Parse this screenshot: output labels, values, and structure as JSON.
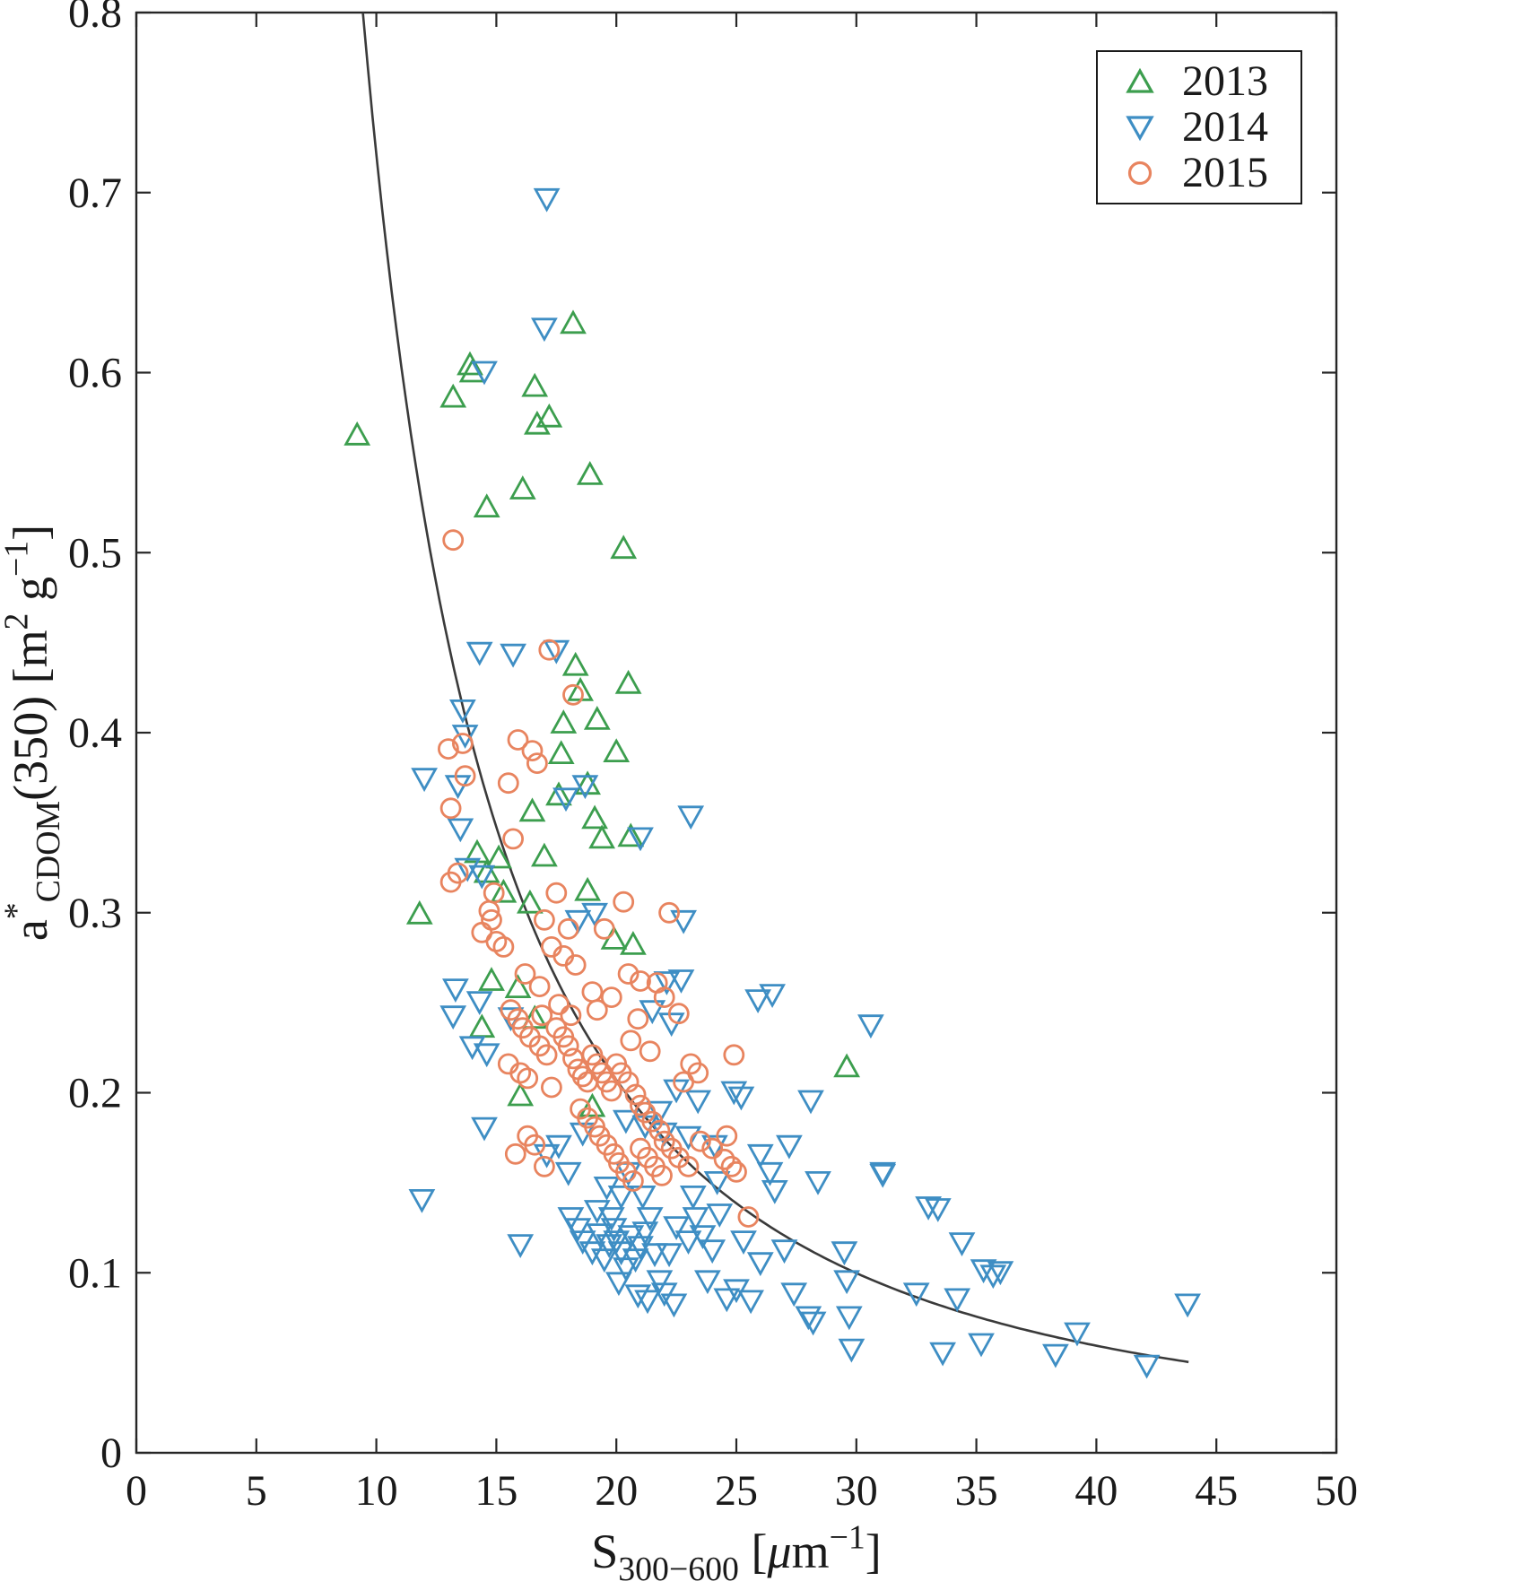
{
  "figure": {
    "background": "#ffffff",
    "axis_color": "#262626",
    "text_color": "#1a1a1a"
  },
  "chart_data": {
    "type": "scatter",
    "title": "",
    "xlabel_text": "S300−600 [μm−1]",
    "ylabel_text": "a*CDOM(350) [m2 g−1]",
    "xlabel_parts": [
      {
        "text": "S",
        "pos": "base"
      },
      {
        "text": "300−600",
        "pos": "sub"
      },
      {
        "text": " [",
        "pos": "base"
      },
      {
        "text": "μ",
        "pos": "base",
        "italic": true
      },
      {
        "text": "m",
        "pos": "base"
      },
      {
        "text": "−1",
        "pos": "sup"
      },
      {
        "text": "]",
        "pos": "base"
      }
    ],
    "ylabel_parts": [
      {
        "text": "a",
        "pos": "base"
      },
      {
        "text": "*",
        "pos": "sup"
      },
      {
        "text": "CDOM",
        "pos": "sub"
      },
      {
        "text": "(350) [m",
        "pos": "base"
      },
      {
        "text": "2",
        "pos": "sup"
      },
      {
        "text": " g",
        "pos": "base"
      },
      {
        "text": "−1",
        "pos": "sup"
      },
      {
        "text": "]",
        "pos": "base"
      }
    ],
    "xlim": [
      0,
      50
    ],
    "ylim": [
      0,
      0.8
    ],
    "xticks": [
      0,
      5,
      10,
      15,
      20,
      25,
      30,
      35,
      40,
      45,
      50
    ],
    "yticks": [
      0,
      0.1,
      0.2,
      0.3,
      0.4,
      0.5,
      0.6,
      0.7,
      0.8
    ],
    "xtick_labels": [
      "0",
      "5",
      "10",
      "15",
      "20",
      "25",
      "30",
      "35",
      "40",
      "45",
      "50"
    ],
    "ytick_labels": [
      "0",
      "0.1",
      "0.2",
      "0.3",
      "0.4",
      "0.5",
      "0.6",
      "0.7",
      "0.8"
    ],
    "grid": false,
    "legend_position": "top-right",
    "fit_curve": {
      "type": "power",
      "equation": "y = 45.5 * x^-1.8",
      "a": 45.5,
      "b": -1.8,
      "x_range": [
        9.44,
        44.0
      ],
      "color": "#3a3a3a"
    },
    "series": [
      {
        "name": "2013",
        "marker": "triangle-up",
        "color": "#3c9e4e",
        "points": [
          [
            9.2,
            0.565
          ],
          [
            11.8,
            0.299
          ],
          [
            13.2,
            0.586
          ],
          [
            13.9,
            0.604
          ],
          [
            14.0,
            0.6
          ],
          [
            14.6,
            0.525
          ],
          [
            16.1,
            0.535
          ],
          [
            16.6,
            0.592
          ],
          [
            16.7,
            0.571
          ],
          [
            17.2,
            0.575
          ],
          [
            18.2,
            0.627
          ],
          [
            18.9,
            0.543
          ],
          [
            20.3,
            0.502
          ],
          [
            18.3,
            0.437
          ],
          [
            18.5,
            0.423
          ],
          [
            20.5,
            0.427
          ],
          [
            17.8,
            0.405
          ],
          [
            19.2,
            0.407
          ],
          [
            17.7,
            0.388
          ],
          [
            20.0,
            0.389
          ],
          [
            17.6,
            0.365
          ],
          [
            18.8,
            0.371
          ],
          [
            19.1,
            0.352
          ],
          [
            19.4,
            0.341
          ],
          [
            20.6,
            0.342
          ],
          [
            16.5,
            0.356
          ],
          [
            17.0,
            0.331
          ],
          [
            14.2,
            0.333
          ],
          [
            14.6,
            0.322
          ],
          [
            15.3,
            0.311
          ],
          [
            16.4,
            0.305
          ],
          [
            18.8,
            0.312
          ],
          [
            14.8,
            0.262
          ],
          [
            15.9,
            0.258
          ],
          [
            16.6,
            0.241
          ],
          [
            14.4,
            0.236
          ],
          [
            16.0,
            0.198
          ],
          [
            19.0,
            0.192
          ],
          [
            29.6,
            0.214
          ],
          [
            20.7,
            0.282
          ],
          [
            19.9,
            0.285
          ],
          [
            15.1,
            0.33
          ]
        ]
      },
      {
        "name": "2014",
        "marker": "triangle-down",
        "color": "#3e8ec4",
        "points": [
          [
            17.1,
            0.697
          ],
          [
            17.0,
            0.625
          ],
          [
            14.5,
            0.601
          ],
          [
            14.3,
            0.445
          ],
          [
            15.7,
            0.444
          ],
          [
            17.5,
            0.446
          ],
          [
            13.6,
            0.413
          ],
          [
            13.7,
            0.399
          ],
          [
            12.0,
            0.375
          ],
          [
            13.4,
            0.371
          ],
          [
            17.9,
            0.364
          ],
          [
            18.7,
            0.371
          ],
          [
            23.1,
            0.354
          ],
          [
            21.0,
            0.342
          ],
          [
            13.5,
            0.347
          ],
          [
            13.8,
            0.325
          ],
          [
            14.4,
            0.321
          ],
          [
            22.8,
            0.296
          ],
          [
            19.1,
            0.3
          ],
          [
            18.4,
            0.296
          ],
          [
            26.5,
            0.255
          ],
          [
            25.9,
            0.252
          ],
          [
            30.6,
            0.238
          ],
          [
            13.3,
            0.258
          ],
          [
            14.3,
            0.251
          ],
          [
            13.2,
            0.243
          ],
          [
            15.6,
            0.242
          ],
          [
            14.0,
            0.226
          ],
          [
            14.6,
            0.222
          ],
          [
            22.1,
            0.262
          ],
          [
            22.7,
            0.263
          ],
          [
            21.5,
            0.246
          ],
          [
            22.3,
            0.239
          ],
          [
            24.9,
            0.201
          ],
          [
            25.2,
            0.198
          ],
          [
            28.1,
            0.196
          ],
          [
            22.5,
            0.202
          ],
          [
            23.4,
            0.196
          ],
          [
            21.8,
            0.19
          ],
          [
            23.0,
            0.176
          ],
          [
            24.1,
            0.171
          ],
          [
            26.0,
            0.166
          ],
          [
            26.4,
            0.156
          ],
          [
            27.2,
            0.171
          ],
          [
            28.4,
            0.151
          ],
          [
            31.1,
            0.156
          ],
          [
            14.5,
            0.181
          ],
          [
            17.6,
            0.171
          ],
          [
            17.1,
            0.166
          ],
          [
            18.0,
            0.156
          ],
          [
            20.4,
            0.185
          ],
          [
            21.2,
            0.182
          ],
          [
            22.0,
            0.178
          ],
          [
            11.9,
            0.141
          ],
          [
            16.0,
            0.116
          ],
          [
            18.1,
            0.131
          ],
          [
            18.4,
            0.125
          ],
          [
            18.6,
            0.118
          ],
          [
            19.0,
            0.112
          ],
          [
            19.3,
            0.122
          ],
          [
            19.5,
            0.108
          ],
          [
            19.7,
            0.116
          ],
          [
            19.9,
            0.125
          ],
          [
            20.0,
            0.118
          ],
          [
            20.2,
            0.112
          ],
          [
            20.4,
            0.103
          ],
          [
            20.6,
            0.121
          ],
          [
            20.8,
            0.108
          ],
          [
            21.0,
            0.115
          ],
          [
            21.2,
            0.123
          ],
          [
            21.4,
            0.131
          ],
          [
            21.6,
            0.111
          ],
          [
            21.8,
            0.096
          ],
          [
            22.0,
            0.089
          ],
          [
            22.2,
            0.111
          ],
          [
            22.5,
            0.126
          ],
          [
            23.0,
            0.118
          ],
          [
            23.3,
            0.131
          ],
          [
            23.6,
            0.121
          ],
          [
            24.0,
            0.113
          ],
          [
            24.3,
            0.133
          ],
          [
            24.6,
            0.086
          ],
          [
            25.0,
            0.091
          ],
          [
            25.3,
            0.118
          ],
          [
            26.0,
            0.106
          ],
          [
            26.6,
            0.146
          ],
          [
            27.0,
            0.113
          ],
          [
            27.4,
            0.089
          ],
          [
            28.0,
            0.076
          ],
          [
            28.2,
            0.073
          ],
          [
            29.5,
            0.112
          ],
          [
            29.6,
            0.096
          ],
          [
            29.7,
            0.076
          ],
          [
            29.8,
            0.058
          ],
          [
            31.1,
            0.155
          ],
          [
            32.5,
            0.089
          ],
          [
            33.0,
            0.137
          ],
          [
            33.4,
            0.136
          ],
          [
            33.6,
            0.056
          ],
          [
            34.2,
            0.086
          ],
          [
            34.4,
            0.117
          ],
          [
            35.2,
            0.061
          ],
          [
            35.3,
            0.102
          ],
          [
            35.7,
            0.099
          ],
          [
            36.0,
            0.101
          ],
          [
            38.3,
            0.055
          ],
          [
            39.2,
            0.067
          ],
          [
            42.1,
            0.049
          ],
          [
            43.8,
            0.083
          ],
          [
            20.5,
            0.156
          ],
          [
            19.6,
            0.148
          ],
          [
            20.2,
            0.143
          ],
          [
            21.1,
            0.143
          ],
          [
            18.6,
            0.178
          ],
          [
            24.2,
            0.151
          ],
          [
            23.2,
            0.143
          ],
          [
            19.2,
            0.135
          ],
          [
            19.8,
            0.131
          ],
          [
            20.9,
            0.088
          ],
          [
            21.3,
            0.085
          ],
          [
            22.4,
            0.083
          ],
          [
            20.1,
            0.095
          ],
          [
            23.8,
            0.096
          ],
          [
            25.6,
            0.085
          ]
        ]
      },
      {
        "name": "2015",
        "marker": "circle",
        "color": "#e8845f",
        "points": [
          [
            13.2,
            0.507
          ],
          [
            17.2,
            0.446
          ],
          [
            18.2,
            0.421
          ],
          [
            13.0,
            0.391
          ],
          [
            13.6,
            0.394
          ],
          [
            15.9,
            0.396
          ],
          [
            16.5,
            0.39
          ],
          [
            16.7,
            0.383
          ],
          [
            13.7,
            0.376
          ],
          [
            15.5,
            0.372
          ],
          [
            13.1,
            0.358
          ],
          [
            15.7,
            0.341
          ],
          [
            13.4,
            0.322
          ],
          [
            13.1,
            0.317
          ],
          [
            14.7,
            0.301
          ],
          [
            14.4,
            0.289
          ],
          [
            15.0,
            0.284
          ],
          [
            15.3,
            0.281
          ],
          [
            22.2,
            0.3
          ],
          [
            20.3,
            0.306
          ],
          [
            17.5,
            0.311
          ],
          [
            17.0,
            0.296
          ],
          [
            18.0,
            0.291
          ],
          [
            19.5,
            0.291
          ],
          [
            17.3,
            0.281
          ],
          [
            17.8,
            0.276
          ],
          [
            18.3,
            0.271
          ],
          [
            16.2,
            0.266
          ],
          [
            16.8,
            0.259
          ],
          [
            20.5,
            0.266
          ],
          [
            21.0,
            0.262
          ],
          [
            22.0,
            0.253
          ],
          [
            22.6,
            0.244
          ],
          [
            15.6,
            0.246
          ],
          [
            15.9,
            0.241
          ],
          [
            16.1,
            0.236
          ],
          [
            16.4,
            0.231
          ],
          [
            16.8,
            0.226
          ],
          [
            17.1,
            0.221
          ],
          [
            15.5,
            0.216
          ],
          [
            16.0,
            0.211
          ],
          [
            17.5,
            0.236
          ],
          [
            17.8,
            0.231
          ],
          [
            18.0,
            0.226
          ],
          [
            18.2,
            0.219
          ],
          [
            18.4,
            0.213
          ],
          [
            18.6,
            0.209
          ],
          [
            18.8,
            0.206
          ],
          [
            19.0,
            0.221
          ],
          [
            19.2,
            0.216
          ],
          [
            19.4,
            0.211
          ],
          [
            19.6,
            0.206
          ],
          [
            19.8,
            0.201
          ],
          [
            20.0,
            0.216
          ],
          [
            20.2,
            0.211
          ],
          [
            20.5,
            0.206
          ],
          [
            20.8,
            0.199
          ],
          [
            21.0,
            0.193
          ],
          [
            21.2,
            0.189
          ],
          [
            21.5,
            0.184
          ],
          [
            21.8,
            0.179
          ],
          [
            22.0,
            0.173
          ],
          [
            22.3,
            0.169
          ],
          [
            22.6,
            0.164
          ],
          [
            23.0,
            0.159
          ],
          [
            23.5,
            0.173
          ],
          [
            24.0,
            0.169
          ],
          [
            24.5,
            0.163
          ],
          [
            24.8,
            0.159
          ],
          [
            18.5,
            0.191
          ],
          [
            18.8,
            0.186
          ],
          [
            19.1,
            0.181
          ],
          [
            19.3,
            0.176
          ],
          [
            19.6,
            0.171
          ],
          [
            19.9,
            0.166
          ],
          [
            20.1,
            0.161
          ],
          [
            20.4,
            0.156
          ],
          [
            20.7,
            0.151
          ],
          [
            21.0,
            0.169
          ],
          [
            21.3,
            0.164
          ],
          [
            21.6,
            0.159
          ],
          [
            21.9,
            0.154
          ],
          [
            16.3,
            0.176
          ],
          [
            16.6,
            0.171
          ],
          [
            15.8,
            0.166
          ],
          [
            17.0,
            0.159
          ],
          [
            25.5,
            0.131
          ],
          [
            24.9,
            0.221
          ],
          [
            23.1,
            0.216
          ],
          [
            23.4,
            0.211
          ],
          [
            22.8,
            0.206
          ],
          [
            14.8,
            0.296
          ],
          [
            14.9,
            0.311
          ],
          [
            21.7,
            0.261
          ],
          [
            20.9,
            0.241
          ],
          [
            19.8,
            0.253
          ],
          [
            19.2,
            0.246
          ],
          [
            17.6,
            0.249
          ],
          [
            16.9,
            0.243
          ],
          [
            20.6,
            0.229
          ],
          [
            21.4,
            0.223
          ],
          [
            19.0,
            0.256
          ],
          [
            18.1,
            0.243
          ],
          [
            16.3,
            0.208
          ],
          [
            17.3,
            0.203
          ],
          [
            24.6,
            0.176
          ],
          [
            25.0,
            0.156
          ]
        ]
      }
    ]
  }
}
